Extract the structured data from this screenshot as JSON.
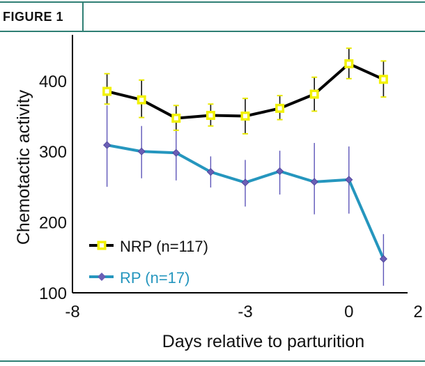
{
  "figure_label": "FIGURE 1",
  "chart_data": {
    "type": "line",
    "title": "",
    "xlabel": "Days relative to parturition",
    "ylabel": "Chemotactic activity",
    "xlim": [
      -8,
      2
    ],
    "ylim": [
      100,
      460
    ],
    "x_ticks": [
      -8,
      -3,
      0,
      2
    ],
    "x_tick_labels": [
      "-8",
      "-3",
      "0",
      "2"
    ],
    "y_ticks": [
      100,
      200,
      300,
      400
    ],
    "y_tick_labels": [
      "100",
      "200",
      "300",
      "400"
    ],
    "x": [
      -7,
      -6,
      -5,
      -4,
      -3,
      -2,
      -1,
      0,
      1
    ],
    "series": [
      {
        "name": "NRP (n=117)",
        "color": "#000000",
        "marker": "square",
        "marker_color": "#f2f200",
        "values": [
          385,
          373,
          347,
          351,
          350,
          361,
          381,
          424,
          402
        ],
        "error_lower": [
          367,
          348,
          330,
          336,
          325,
          345,
          357,
          403,
          377
        ],
        "error_upper": [
          410,
          401,
          365,
          367,
          375,
          379,
          405,
          446,
          428
        ]
      },
      {
        "name": "RP (n=17)",
        "color": "#2596be",
        "marker": "diamond",
        "marker_color": "#6b5fb5",
        "values": [
          309,
          300,
          298,
          271,
          256,
          272,
          257,
          260,
          148
        ],
        "error_lower": [
          250,
          262,
          259,
          249,
          222,
          239,
          211,
          212,
          110
        ],
        "error_upper": [
          365,
          336,
          337,
          293,
          288,
          301,
          312,
          307,
          183
        ]
      }
    ],
    "legend_position": "bottom-left",
    "grid": false
  }
}
